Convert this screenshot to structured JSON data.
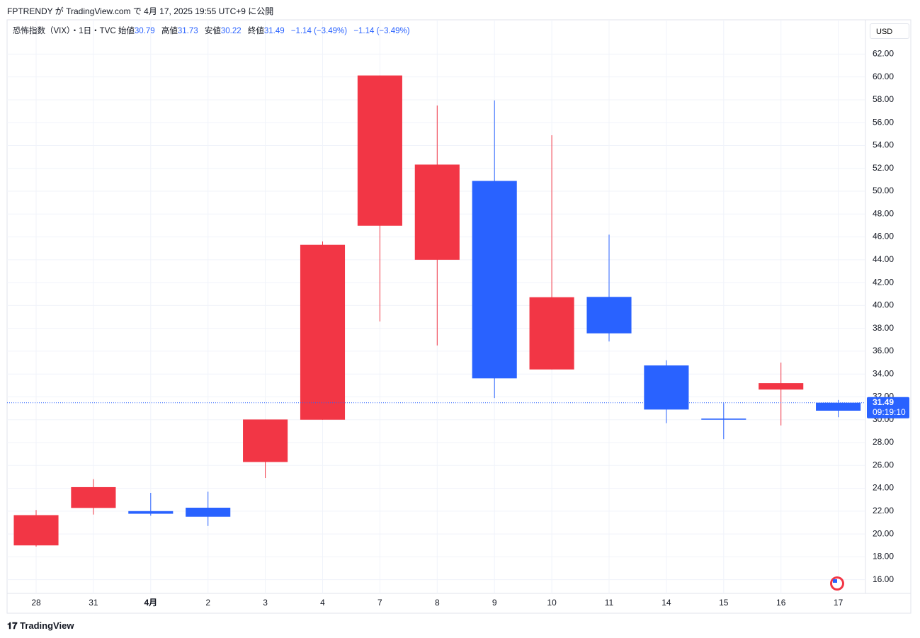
{
  "publish_note": "FPTRENDY が TradingView.com で 4月 17, 2025 19:55 UTC+9 に公開",
  "brand": "TradingView",
  "chart_data": {
    "type": "candlestick",
    "title": "恐怖指数（VIX）・1日・TVC",
    "header_labels": {
      "open": "始値",
      "high": "高値",
      "low": "安値",
      "close": "終値"
    },
    "change_texts": [
      "−1.14 (−3.49%)",
      "−1.14 (−3.49%)"
    ],
    "currency": "USD",
    "last_time": "09:19:10",
    "categories": [
      "28",
      "31",
      "4月",
      "2",
      "3",
      "4",
      "7",
      "8",
      "9",
      "10",
      "11",
      "14",
      "15",
      "16",
      "17"
    ],
    "open": [
      19.0,
      24.1,
      22.0,
      22.3,
      26.3,
      30.0,
      60.13,
      44.0,
      50.9,
      34.4,
      40.75,
      34.75,
      30.1,
      33.2,
      30.79
    ],
    "high": [
      22.1,
      24.8,
      23.6,
      23.7,
      30.02,
      45.6,
      60.13,
      57.5,
      57.95,
      54.9,
      46.2,
      35.2,
      31.45,
      35.0,
      31.73
    ],
    "low": [
      18.9,
      21.7,
      21.6,
      20.7,
      24.9,
      30.0,
      38.6,
      36.5,
      31.9,
      34.4,
      36.85,
      29.7,
      28.3,
      29.5,
      30.22
    ],
    "close": [
      21.65,
      22.28,
      21.77,
      21.51,
      30.02,
      45.31,
      46.98,
      52.33,
      33.62,
      40.72,
      37.56,
      30.89,
      30.0,
      32.64,
      31.49
    ],
    "colors": [
      "#f23645",
      "#f23645",
      "#2962ff",
      "#2962ff",
      "#f23645",
      "#f23645",
      "#f23645",
      "#f23645",
      "#2962ff",
      "#f23645",
      "#2962ff",
      "#2962ff",
      "#2962ff",
      "#f23645",
      "#2962ff"
    ],
    "ylim": [
      14.8,
      65.0
    ],
    "yticks": [
      {
        "value": 16,
        "label": "16.00"
      },
      {
        "value": 18,
        "label": "18.00"
      },
      {
        "value": 20,
        "label": "20.00"
      },
      {
        "value": 22,
        "label": "22.00"
      },
      {
        "value": 24,
        "label": "24.00"
      },
      {
        "value": 26,
        "label": "26.00"
      },
      {
        "value": 28,
        "label": "28.00"
      },
      {
        "value": 30,
        "label": "30.00"
      },
      {
        "value": 32,
        "label": "32.00"
      },
      {
        "value": 34,
        "label": "34.00"
      },
      {
        "value": 36,
        "label": "36.00"
      },
      {
        "value": 38,
        "label": "38.00"
      },
      {
        "value": 40,
        "label": "40.00"
      },
      {
        "value": 42,
        "label": "42.00"
      },
      {
        "value": 44,
        "label": "44.00"
      },
      {
        "value": 46,
        "label": "46.00"
      },
      {
        "value": 48,
        "label": "48.00"
      },
      {
        "value": 50,
        "label": "50.00"
      },
      {
        "value": 52,
        "label": "52.00"
      },
      {
        "value": 54,
        "label": "54.00"
      },
      {
        "value": 56,
        "label": "56.00"
      },
      {
        "value": 58,
        "label": "58.00"
      },
      {
        "value": 60,
        "label": "60.00"
      },
      {
        "value": 62,
        "label": "62.00"
      }
    ],
    "grid": true
  }
}
